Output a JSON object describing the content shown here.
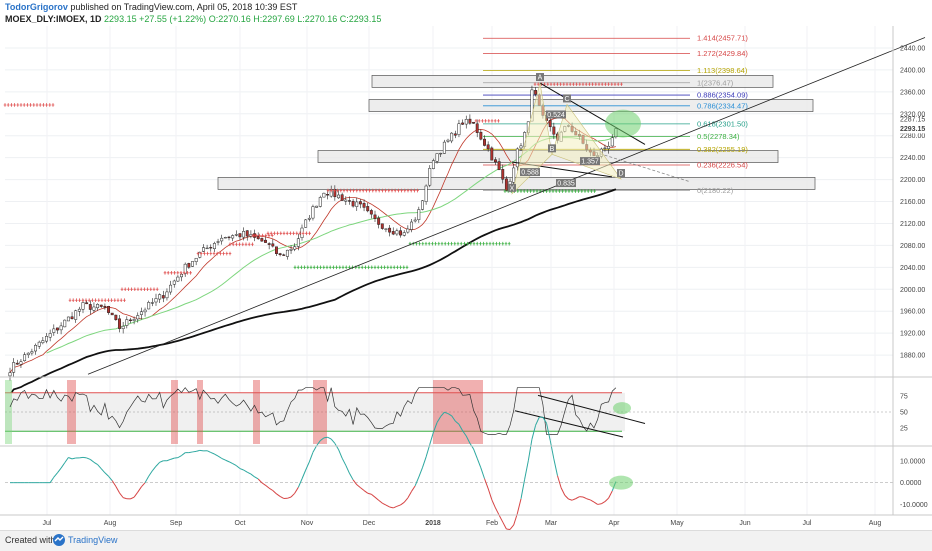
{
  "header": {
    "author": "TodorGrigorov",
    "published_text": "published on TradingView.com, April 05, 2018 10:39 EST",
    "symbol": "MOEX_DLY:IMOEX, 1D",
    "last": "2293.15",
    "change": "+27.55 (+1.22%)",
    "ohlc": "O:2270.16 H:2297.69 L:2270.16 C:2293.15"
  },
  "footer": {
    "created_with": "Created with",
    "brand": "TradingView"
  },
  "colors": {
    "up": "#ffffff",
    "down": "#b0322f",
    "ma_fast": "#c0392b",
    "ma_mid": "#7ed67e",
    "ma_slow": "#111111",
    "fib": "#d64545",
    "overbought": "#e05050",
    "oversold": "#3cb043",
    "highlight": "#6ecf6e"
  },
  "chart_data": {
    "type": "candlestick",
    "symbol": "MOEX_DLY:IMOEX",
    "timeframe": "1D",
    "x_tick_labels": [
      "Jul",
      "Aug",
      "Sep",
      "Oct",
      "Nov",
      "Dec",
      "2018",
      "Feb",
      "Mar",
      "Apr",
      "May",
      "Jun",
      "Jul",
      "Aug"
    ],
    "price_axis": {
      "range": [
        1840,
        2480
      ],
      "tick_labels": [
        "2440.00",
        "2400.00",
        "2360.00",
        "2320.00",
        "2280.00",
        "2240.00",
        "2200.00",
        "2160.00",
        "2120.00",
        "2080.00",
        "2040.00",
        "2000.00",
        "1960.00",
        "1920.00",
        "1880.00"
      ],
      "last_price_label": "2293.15",
      "extra_label": "2287.15"
    },
    "anchors": [
      {
        "i": 0,
        "v": 1855
      },
      {
        "i": 8,
        "v": 1900
      },
      {
        "i": 14,
        "v": 1935
      },
      {
        "i": 20,
        "v": 1970
      },
      {
        "i": 26,
        "v": 1965
      },
      {
        "i": 30,
        "v": 1930
      },
      {
        "i": 36,
        "v": 1960
      },
      {
        "i": 42,
        "v": 1990
      },
      {
        "i": 48,
        "v": 2040
      },
      {
        "i": 52,
        "v": 2065
      },
      {
        "i": 58,
        "v": 2095
      },
      {
        "i": 64,
        "v": 2100
      },
      {
        "i": 70,
        "v": 2085
      },
      {
        "i": 74,
        "v": 2060
      },
      {
        "i": 78,
        "v": 2080
      },
      {
        "i": 82,
        "v": 2135
      },
      {
        "i": 86,
        "v": 2180
      },
      {
        "i": 90,
        "v": 2170
      },
      {
        "i": 96,
        "v": 2150
      },
      {
        "i": 100,
        "v": 2125
      },
      {
        "i": 104,
        "v": 2110
      },
      {
        "i": 108,
        "v": 2100
      },
      {
        "i": 112,
        "v": 2140
      },
      {
        "i": 116,
        "v": 2240
      },
      {
        "i": 120,
        "v": 2270
      },
      {
        "i": 124,
        "v": 2305
      },
      {
        "i": 127,
        "v": 2300
      },
      {
        "i": 131,
        "v": 2255
      },
      {
        "i": 134,
        "v": 2215
      },
      {
        "i": 136,
        "v": 2180
      },
      {
        "i": 139,
        "v": 2250
      },
      {
        "i": 142,
        "v": 2300
      },
      {
        "i": 143,
        "v": 2370
      },
      {
        "i": 146,
        "v": 2310
      },
      {
        "i": 150,
        "v": 2275
      },
      {
        "i": 153,
        "v": 2300
      },
      {
        "i": 157,
        "v": 2265
      },
      {
        "i": 160,
        "v": 2240
      },
      {
        "i": 164,
        "v": 2265
      },
      {
        "i": 166,
        "v": 2293
      }
    ],
    "fib_levels": [
      {
        "label": "1.414(2457.71)",
        "value": 2457.71,
        "color": "#d64545"
      },
      {
        "label": "1.272(2429.84)",
        "value": 2429.84,
        "color": "#d64545"
      },
      {
        "label": "1.113(2398.64)",
        "value": 2398.64,
        "color": "#b5a400"
      },
      {
        "label": "1(2376.47)",
        "value": 2376.47,
        "color": "#9e9e9e"
      },
      {
        "label": "0.886(2354.09)",
        "value": 2354.09,
        "color": "#3b3bb8"
      },
      {
        "label": "0.786(2334.47)",
        "value": 2334.47,
        "color": "#2a8fd6"
      },
      {
        "label": "0.618(2301.50)",
        "value": 2301.5,
        "color": "#27a08a"
      },
      {
        "label": "0.5(2278.34)",
        "value": 2278.34,
        "color": "#3cb043"
      },
      {
        "label": "0.382(2255.19)",
        "value": 2255.19,
        "color": "#b5a400"
      },
      {
        "label": "0.236(2226.54)",
        "value": 2226.54,
        "color": "#d64545"
      },
      {
        "label": "0(2180.22)",
        "value": 2180.22,
        "color": "#9e9e9e"
      }
    ],
    "harmonic_points": [
      "A",
      "B",
      "C",
      "D",
      "X"
    ],
    "harmonic_ratios": [
      "0.588",
      "0.835",
      "1.357",
      "0.524"
    ],
    "rsi": {
      "tick_labels": [
        "75",
        "50",
        "25"
      ],
      "range": [
        0,
        100
      ],
      "upper_band": 80,
      "lower_band": 20
    },
    "oscillator": {
      "tick_labels": [
        "10.0000",
        "0.0000",
        "-10.0000"
      ],
      "range": [
        -14,
        16
      ]
    }
  }
}
